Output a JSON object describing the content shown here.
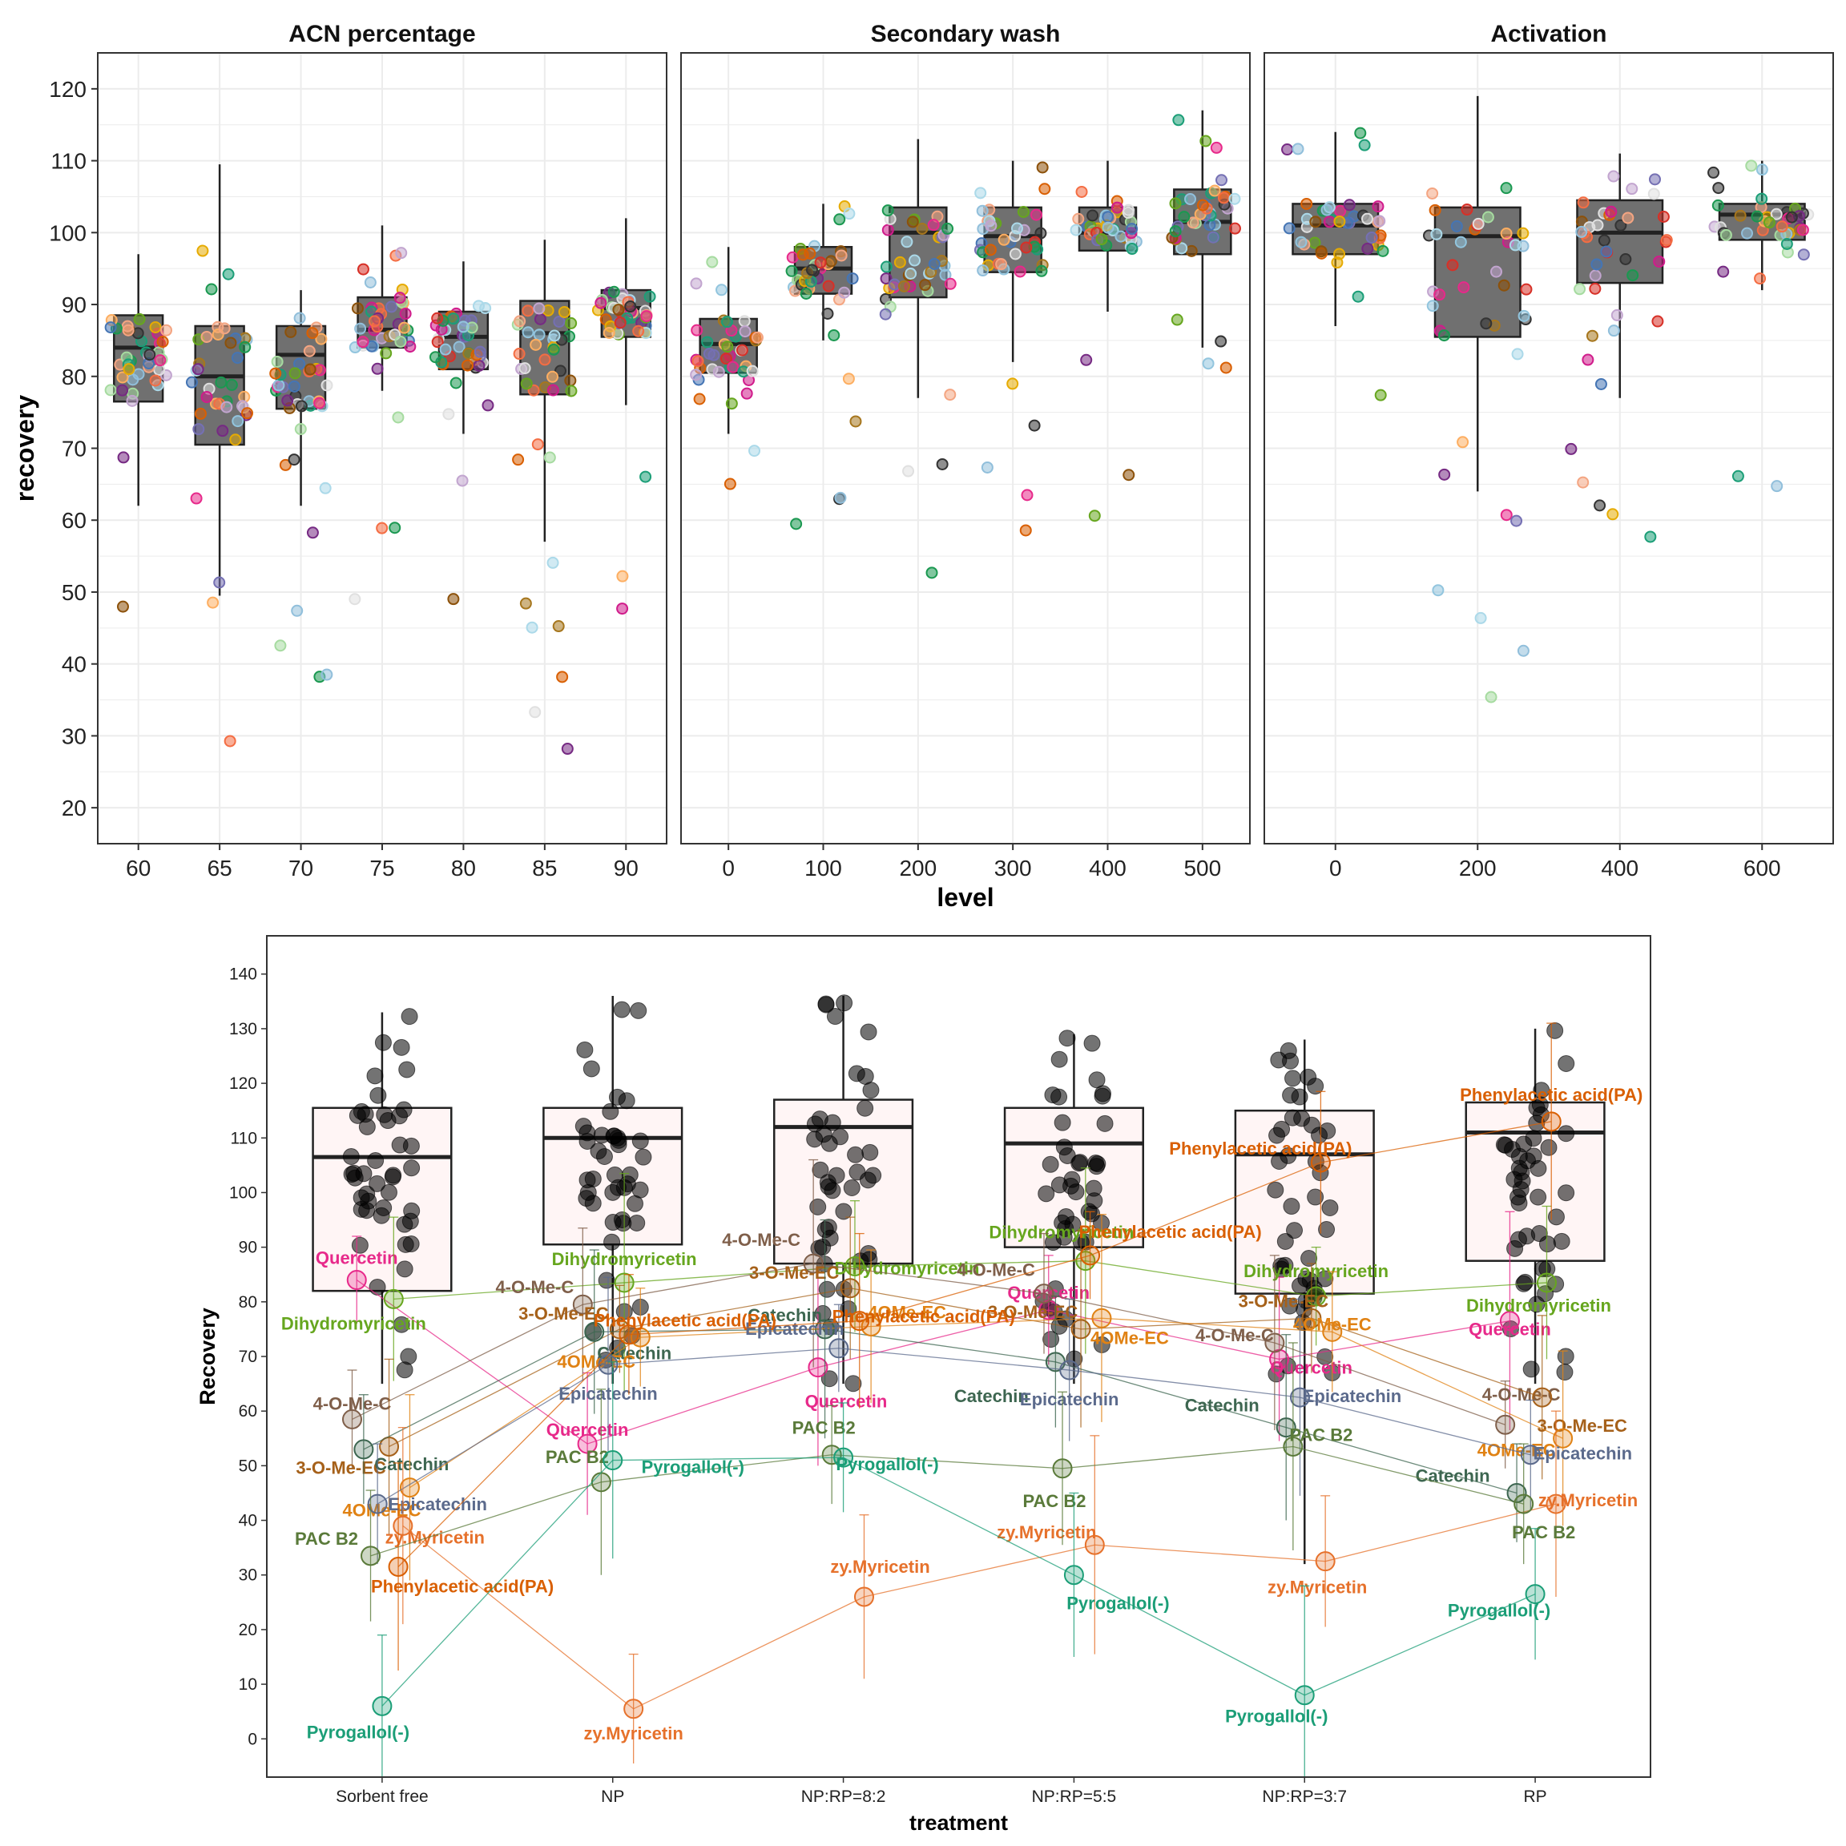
{
  "chart_data": [
    {
      "type": "box",
      "facets": [
        {
          "title": "ACN percentage",
          "categories": [
            "60",
            "65",
            "70",
            "75",
            "80",
            "85",
            "90"
          ],
          "boxes": [
            {
              "q1": 76.5,
              "median": 84,
              "q3": 88.5,
              "whisker_low": 62,
              "whisker_high": 97
            },
            {
              "q1": 70.5,
              "median": 80,
              "q3": 87,
              "whisker_low": 49.5,
              "whisker_high": 109.5
            },
            {
              "q1": 75.5,
              "median": 83,
              "q3": 87,
              "whisker_low": 62,
              "whisker_high": 92
            },
            {
              "q1": 84,
              "median": 86.5,
              "q3": 91,
              "whisker_low": 78,
              "whisker_high": 101
            },
            {
              "q1": 81,
              "median": 85.5,
              "q3": 89,
              "whisker_low": 72,
              "whisker_high": 96
            },
            {
              "q1": 77.5,
              "median": 86,
              "q3": 90.5,
              "whisker_low": 57,
              "whisker_high": 99
            },
            {
              "q1": 85.5,
              "median": 89.5,
              "q3": 92,
              "whisker_low": 76,
              "whisker_high": 102
            }
          ]
        },
        {
          "title": "Secondary wash",
          "categories": [
            "0",
            "100",
            "200",
            "300",
            "400",
            "500"
          ],
          "boxes": [
            {
              "q1": 80.5,
              "median": 84.5,
              "q3": 88,
              "whisker_low": 72,
              "whisker_high": 98
            },
            {
              "q1": 91.5,
              "median": 95,
              "q3": 98,
              "whisker_low": 85,
              "whisker_high": 104
            },
            {
              "q1": 91,
              "median": 100,
              "q3": 103.5,
              "whisker_low": 77,
              "whisker_high": 113
            },
            {
              "q1": 94.5,
              "median": 99.5,
              "q3": 103.5,
              "whisker_low": 82,
              "whisker_high": 110
            },
            {
              "q1": 97.5,
              "median": 100,
              "q3": 103.5,
              "whisker_low": 89,
              "whisker_high": 110
            },
            {
              "q1": 97,
              "median": 101.5,
              "q3": 106,
              "whisker_low": 84,
              "whisker_high": 117
            }
          ]
        },
        {
          "title": "Activation",
          "categories": [
            "0",
            "200",
            "400",
            "600"
          ],
          "boxes": [
            {
              "q1": 97,
              "median": 101,
              "q3": 104,
              "whisker_low": 87,
              "whisker_high": 114
            },
            {
              "q1": 85.5,
              "median": 99.5,
              "q3": 103.5,
              "whisker_low": 64,
              "whisker_high": 119
            },
            {
              "q1": 93,
              "median": 100,
              "q3": 104.5,
              "whisker_low": 77,
              "whisker_high": 111
            },
            {
              "q1": 99,
              "median": 102.5,
              "q3": 104,
              "whisker_low": 92,
              "whisker_high": 110
            }
          ]
        }
      ],
      "xlabel": "level",
      "ylabel": "recovery",
      "ylim": [
        15,
        125
      ],
      "yticks": [
        20,
        30,
        40,
        50,
        60,
        70,
        80,
        90,
        100,
        110,
        120
      ],
      "grid": true
    },
    {
      "type": "box",
      "categories": [
        "Sorbent free",
        "NP",
        "NP:RP=8:2",
        "NP:RP=5:5",
        "NP:RP=3:7",
        "RP"
      ],
      "boxes": [
        {
          "q1": 82,
          "median": 106.5,
          "q3": 115.5,
          "whisker_low": null,
          "whisker_high": 133
        },
        {
          "q1": 90.5,
          "median": 110,
          "q3": 115.5,
          "whisker_low": null,
          "whisker_high": 136
        },
        {
          "q1": 87,
          "median": 112,
          "q3": 117,
          "whisker_low": null,
          "whisker_high": 136
        },
        {
          "q1": 90,
          "median": 109,
          "q3": 115.5,
          "whisker_low": null,
          "whisker_high": 129
        },
        {
          "q1": 81.5,
          "median": 107,
          "q3": 115,
          "whisker_low": 32,
          "whisker_high": 128
        },
        {
          "q1": 87.5,
          "median": 111,
          "q3": 116.5,
          "whisker_low": null,
          "whisker_high": 130
        }
      ],
      "series": [
        {
          "name": "Quercetin",
          "color": "#e7298a",
          "values": [
            84,
            54,
            68,
            78.5,
            69.5,
            76.5
          ]
        },
        {
          "name": "Dihydromyricetin",
          "color": "#66a61e",
          "values": [
            80.5,
            83.5,
            86.5,
            87.5,
            81,
            83.5
          ]
        },
        {
          "name": "4-O-Me-C",
          "color": "#7f5f4a",
          "values": [
            58.5,
            79.5,
            87,
            81.5,
            72.5,
            57.5
          ]
        },
        {
          "name": "3-O-Me-EC",
          "color": "#a6611a",
          "values": [
            53.5,
            75,
            82.5,
            75,
            77,
            62.5
          ]
        },
        {
          "name": "Catechin",
          "color": "#3d6650",
          "values": [
            53,
            74.5,
            75,
            69,
            57,
            45
          ]
        },
        {
          "name": "4OMe-EC",
          "color": "#e08214",
          "values": [
            46,
            73.5,
            75.5,
            77,
            74.5,
            55
          ]
        },
        {
          "name": "Epicatechin",
          "color": "#5b6a8c",
          "values": [
            43,
            68.5,
            71.5,
            67.5,
            62.5,
            52
          ]
        },
        {
          "name": "zy.Myricetin",
          "color": "#e6712b",
          "values": [
            39,
            5.5,
            26,
            35.5,
            32.5,
            43
          ]
        },
        {
          "name": "PAC B2",
          "color": "#5a7a3a",
          "values": [
            33.5,
            47,
            52,
            49.5,
            53.5,
            43
          ]
        },
        {
          "name": "Phenylacetic acid(PA)",
          "color": "#d95f02",
          "values": [
            31.5,
            74,
            76.5,
            88.5,
            105.5,
            113
          ]
        },
        {
          "name": "Pyrogallol(-)",
          "color": "#1b9e77",
          "values": [
            6,
            51,
            51.5,
            30,
            8,
            26.5
          ]
        }
      ],
      "xlabel": "treatment",
      "ylabel": "Recovery",
      "ylim": [
        -7,
        147
      ],
      "yticks": [
        0,
        10,
        20,
        30,
        40,
        50,
        60,
        70,
        80,
        90,
        100,
        110,
        120,
        130,
        140
      ]
    }
  ]
}
